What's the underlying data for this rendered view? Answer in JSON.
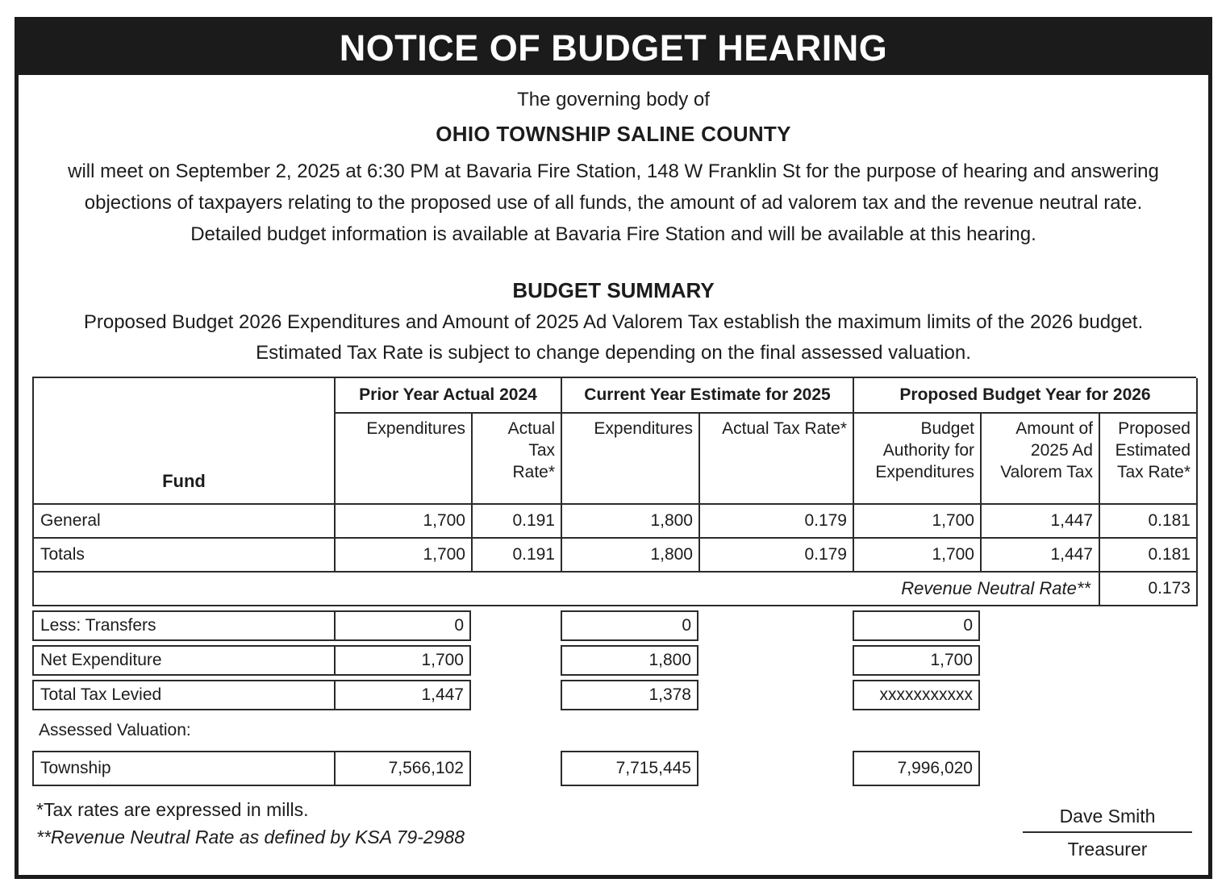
{
  "page": {
    "title": "NOTICE OF BUDGET HEARING"
  },
  "colors": {
    "banner_bg": "#1b1b1b",
    "banner_text": "#ffffff",
    "text": "#1c1c1c",
    "border": "#2b2b2b"
  },
  "intro": {
    "governing": "The governing body of",
    "entity": "OHIO TOWNSHIP SALINE COUNTY",
    "lines": [
      "will meet on September 2, 2025 at 6:30 PM at Bavaria Fire Station, 148 W Franklin St for the purpose of hearing and answering",
      "objections of taxpayers relating to the proposed use of all funds, the amount of ad valorem tax and the revenue neutral rate.",
      "Detailed budget information is available at Bavaria Fire Station and will be available at this hearing."
    ]
  },
  "summary": {
    "heading": "BUDGET SUMMARY",
    "lines": [
      "Proposed Budget 2026 Expenditures and Amount of 2025 Ad Valorem Tax establish the maximum limits of the 2026 budget.",
      "Estimated Tax Rate is subject to change depending on the final assessed valuation."
    ]
  },
  "table": {
    "fund_header": "Fund",
    "group_headers": [
      "Prior Year Actual 2024",
      "Current Year Estimate for 2025",
      "Proposed Budget Year for 2026"
    ],
    "column_headers": [
      "Expenditures",
      "Actual Tax Rate*",
      "Expenditures",
      "Actual Tax Rate*",
      "Budget Authority for Expenditures",
      "Amount of 2025 Ad Valorem Tax",
      "Proposed Estimated Tax Rate*"
    ],
    "rows": [
      {
        "fund": "General",
        "values": [
          "1,700",
          "0.191",
          "1,800",
          "0.179",
          "1,700",
          "1,447",
          "0.181"
        ]
      },
      {
        "fund": "Totals",
        "values": [
          "1,700",
          "0.191",
          "1,800",
          "0.179",
          "1,700",
          "1,447",
          "0.181"
        ]
      }
    ],
    "revenue_neutral": {
      "label": "Revenue Neutral Rate**",
      "value": "0.173"
    },
    "detail_rows": [
      {
        "label": "Less: Transfers",
        "values": [
          "0",
          "0",
          "0"
        ]
      },
      {
        "label": "Net Expenditure",
        "values": [
          "1,700",
          "1,800",
          "1,700"
        ]
      },
      {
        "label": "Total Tax Levied",
        "values": [
          "1,447",
          "1,378",
          "xxxxxxxxxxx"
        ]
      }
    ],
    "assessed_valuation_label": "Assessed Valuation:",
    "valuation_row": {
      "label": "Township",
      "values": [
        "7,566,102",
        "7,715,445",
        "7,996,020"
      ]
    }
  },
  "footnotes": {
    "mills": "*Tax rates are expressed in mills.",
    "rnr": "**Revenue Neutral Rate as defined by KSA 79-2988"
  },
  "signature": {
    "name": "Dave Smith",
    "title": "Treasurer"
  }
}
